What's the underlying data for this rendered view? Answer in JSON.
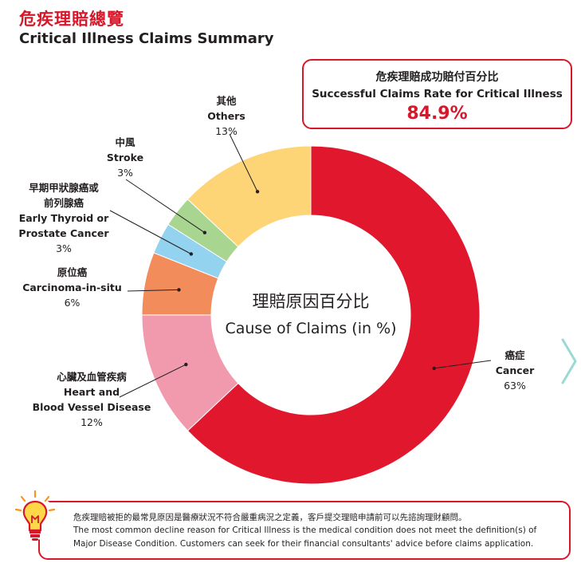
{
  "header": {
    "title_zh": "危疾理賠總覽",
    "title_en": "Critical Illness Claims Summary"
  },
  "success_rate": {
    "label_zh": "危疾理賠成功賠付百分比",
    "label_en": "Successful Claims Rate for Critical Illness",
    "value": "84.9%"
  },
  "center": {
    "label_zh": "理賠原因百分比",
    "label_en": "Cause of Claims (in %)"
  },
  "chart_data": {
    "type": "pie",
    "subtype": "donut",
    "title": "理賠原因百分比 Cause of Claims (in %)",
    "slices": [
      {
        "name_zh": "癌症",
        "name_en": "Cancer",
        "value": 63,
        "label": "63%",
        "color": "#e0172d"
      },
      {
        "name_zh": "心臟及血管疾病",
        "name_en": "Heart and Blood Vessel Disease",
        "value": 12,
        "label": "12%",
        "color": "#f19aae"
      },
      {
        "name_zh": "原位癌",
        "name_en": "Carcinoma-in-situ",
        "value": 6,
        "label": "6%",
        "color": "#f28c5b"
      },
      {
        "name_zh": "早期甲狀腺癌或前列腺癌",
        "name_zh_lines": [
          "早期甲狀腺癌或",
          "前列腺癌"
        ],
        "name_en": "Early Thyroid or Prostate Cancer",
        "name_en_lines": [
          "Early Thyroid or",
          "Prostate Cancer"
        ],
        "value": 3,
        "label": "3%",
        "color": "#93d3ef"
      },
      {
        "name_zh": "中風",
        "name_en": "Stroke",
        "value": 3,
        "label": "3%",
        "color": "#a8d58f"
      },
      {
        "name_zh": "其他",
        "name_en": "Others",
        "value": 13,
        "label": "13%",
        "color": "#fdd577"
      }
    ]
  },
  "labels": {
    "cancer": {
      "zh": "癌症",
      "en": "Cancer",
      "pct": "63%"
    },
    "heart": {
      "zh": "心臟及血管疾病",
      "en1": "Heart and",
      "en2": "Blood Vessel Disease",
      "pct": "12%"
    },
    "cis": {
      "zh": "原位癌",
      "en": "Carcinoma-in-situ",
      "pct": "6%"
    },
    "thyroid": {
      "zh1": "早期甲狀腺癌或",
      "zh2": "前列腺癌",
      "en1": "Early Thyroid or",
      "en2": "Prostate Cancer",
      "pct": "3%"
    },
    "stroke": {
      "zh": "中風",
      "en": "Stroke",
      "pct": "3%"
    },
    "others": {
      "zh": "其他",
      "en": "Others",
      "pct": "13%"
    }
  },
  "note": {
    "zh": "危疾理賠被拒的最常見原因是醫療狀況不符合嚴重病況之定義，客戶提交理賠申請前可以先諮詢理財顧問。",
    "en_line1": "The most common decline reason for Critical Illness is the medical condition does not meet the definition(s) of",
    "en_line2": "Major Disease Condition. Customers can seek for their financial consultants' advice before claims application.",
    "icon": "lightbulb-icon"
  },
  "nav": {
    "next_icon": "chevron-right-icon"
  },
  "colors": {
    "accent": "#d7182a",
    "leader": "#231f20",
    "chevron": "#9ad9d4"
  }
}
